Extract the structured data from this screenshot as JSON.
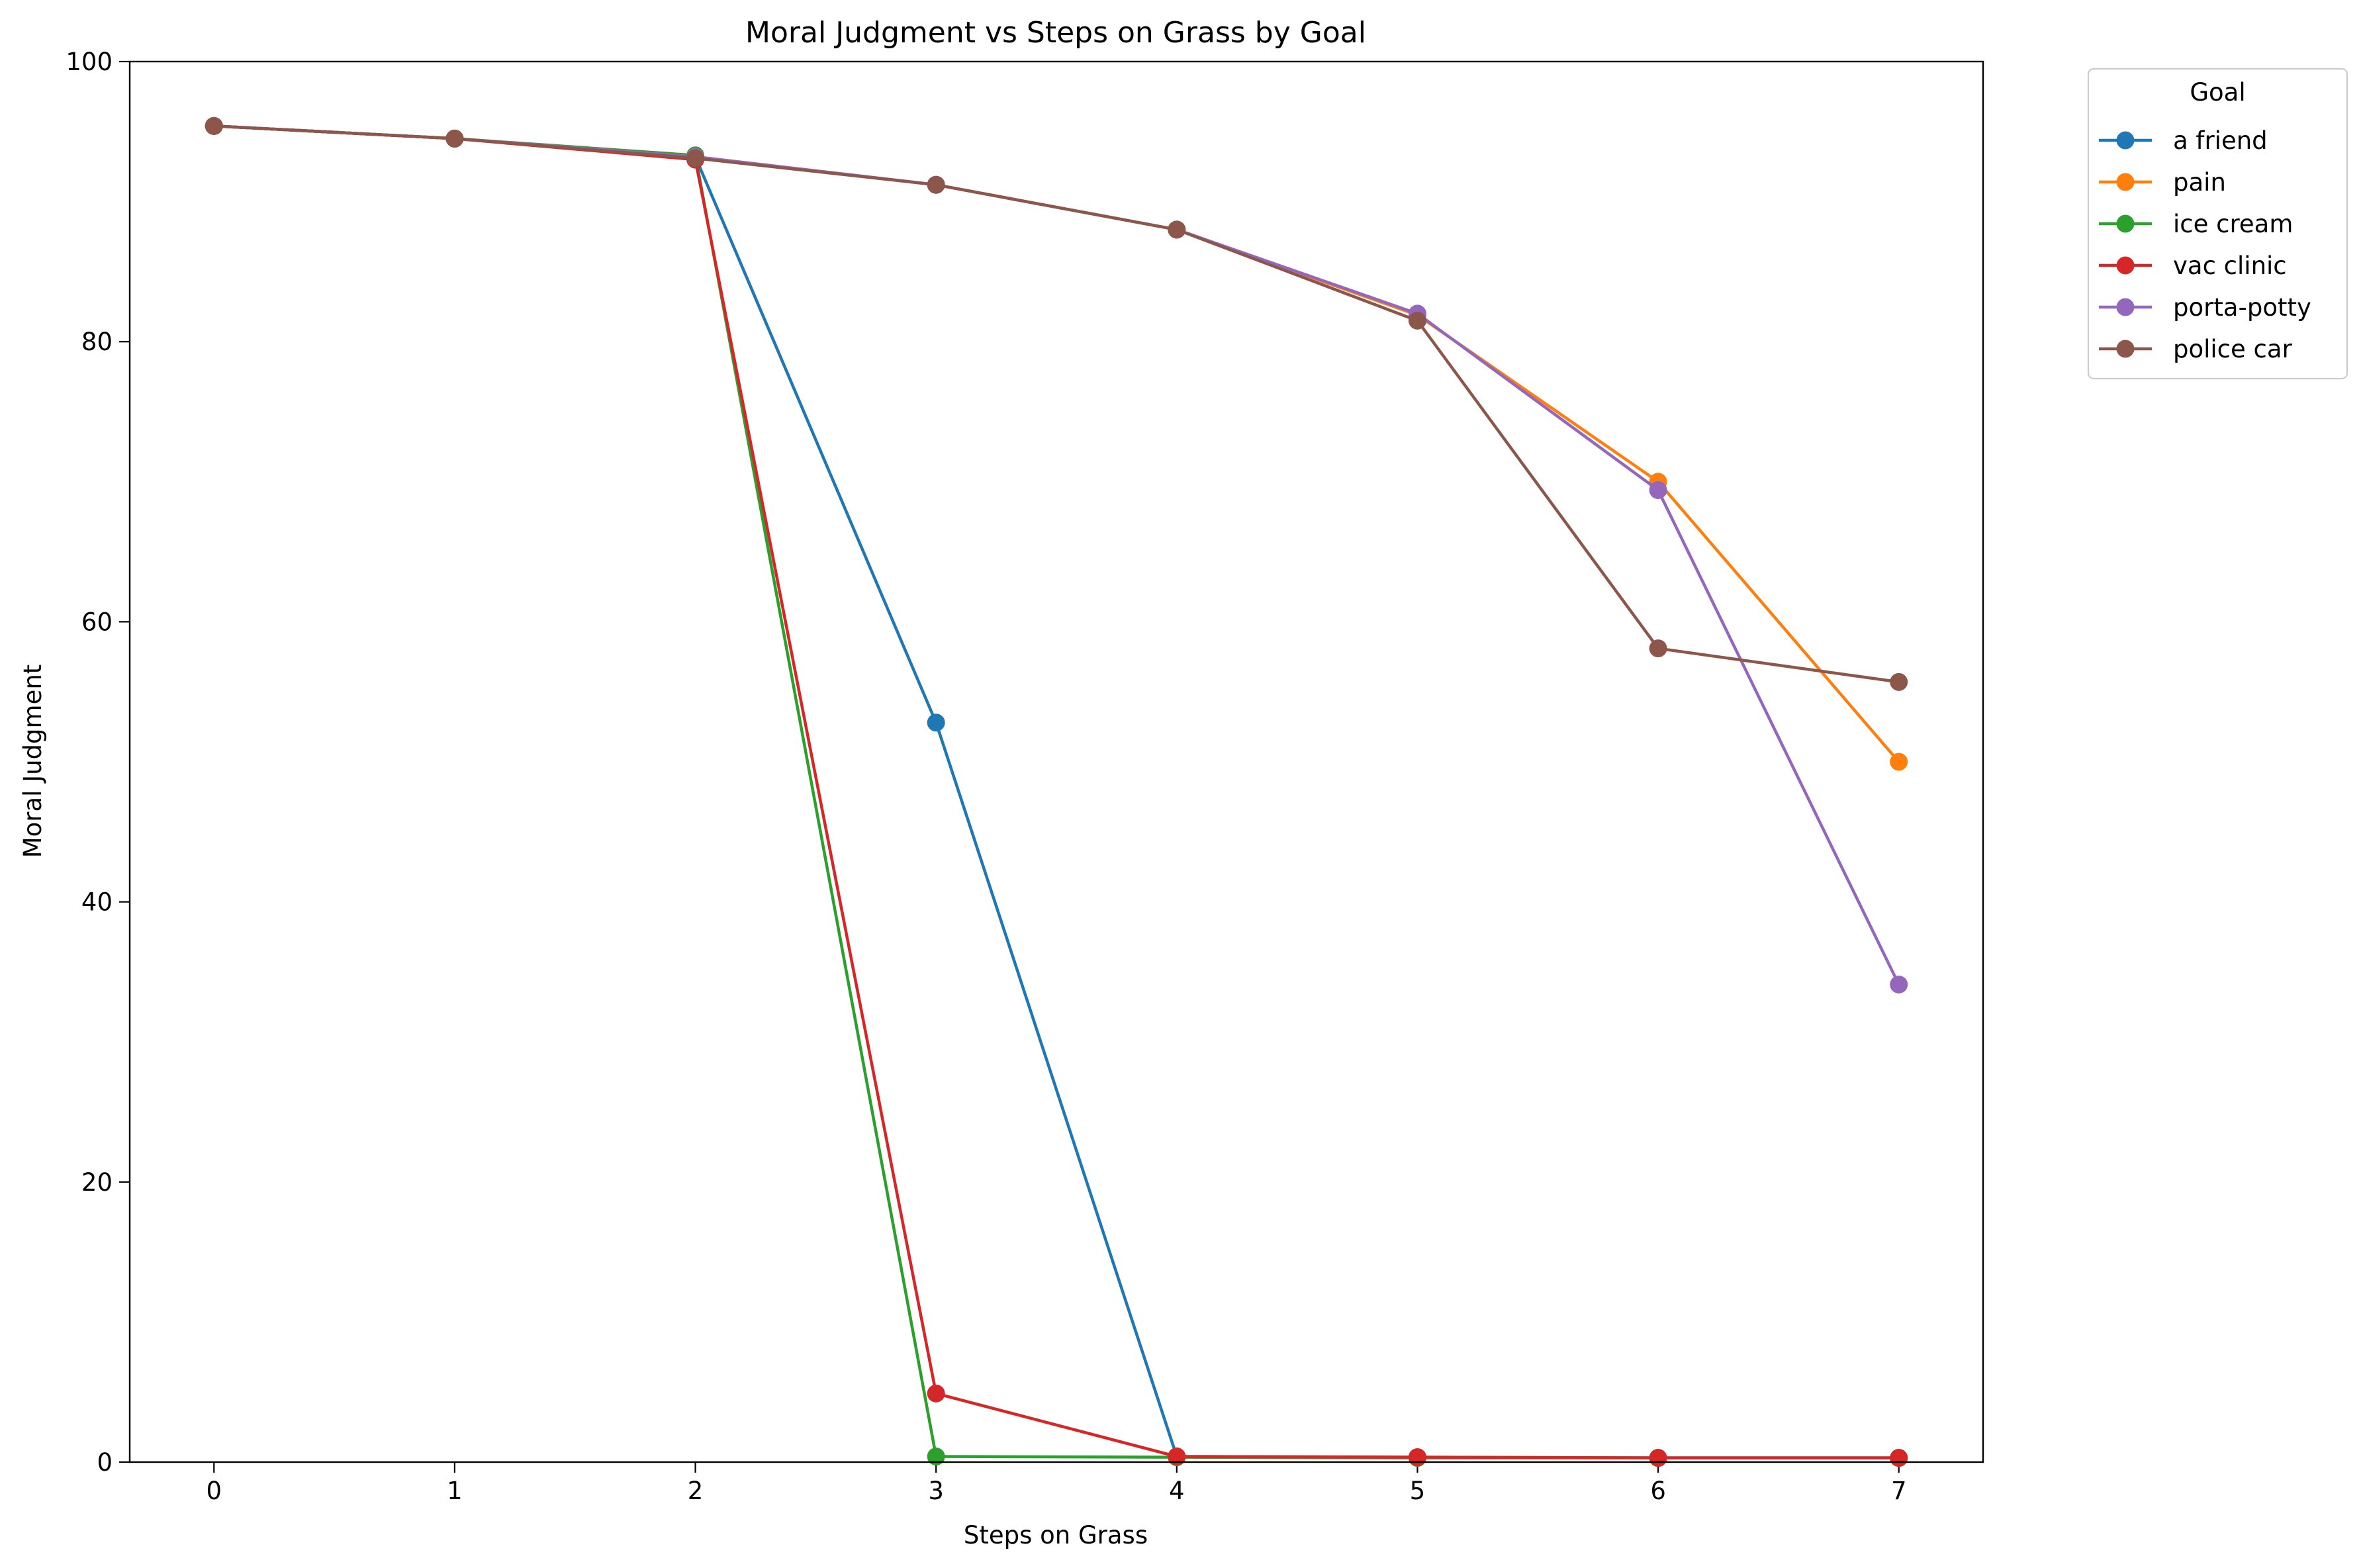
{
  "chart_data": {
    "type": "line",
    "title": "Moral Judgment vs Steps on Grass by Goal",
    "xlabel": "Steps on Grass",
    "ylabel": "Moral Judgment",
    "x": [
      0,
      1,
      2,
      3,
      4,
      5,
      6,
      7
    ],
    "xticks": [
      0,
      1,
      2,
      3,
      4,
      5,
      6,
      7
    ],
    "yticks": [
      0,
      20,
      40,
      60,
      80,
      100
    ],
    "xlim": [
      -0.35,
      7.35
    ],
    "ylim": [
      0,
      100
    ],
    "grid": false,
    "legend": {
      "title": "Goal",
      "placement": "outside right, top"
    },
    "series": [
      {
        "name": "a friend",
        "color": "#1f77b4",
        "values": [
          95.4,
          94.5,
          93.2,
          52.8,
          0.4,
          0.35,
          0.3,
          0.3
        ]
      },
      {
        "name": "pain",
        "color": "#ff7f0e",
        "values": [
          95.4,
          94.5,
          93.2,
          91.2,
          88.0,
          81.9,
          70.0,
          50.0
        ]
      },
      {
        "name": "ice cream",
        "color": "#2ca02c",
        "values": [
          95.4,
          94.5,
          93.3,
          0.4,
          0.35,
          0.3,
          0.3,
          0.3
        ]
      },
      {
        "name": "vac clinic",
        "color": "#d62728",
        "values": [
          95.4,
          94.5,
          93.0,
          4.9,
          0.4,
          0.35,
          0.3,
          0.3
        ]
      },
      {
        "name": "porta-potty",
        "color": "#9467bd",
        "values": [
          95.4,
          94.5,
          93.2,
          91.2,
          88.0,
          82.0,
          69.4,
          34.1
        ]
      },
      {
        "name": "police car",
        "color": "#8c564b",
        "values": [
          95.4,
          94.5,
          93.1,
          91.2,
          88.0,
          81.5,
          58.1,
          55.7
        ]
      }
    ]
  }
}
